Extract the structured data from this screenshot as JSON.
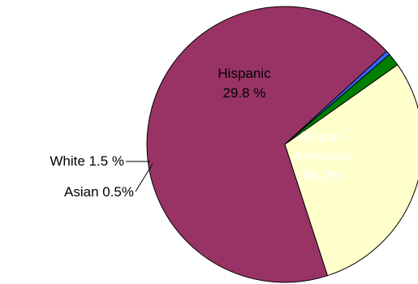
{
  "chart_data": {
    "type": "pie",
    "slices": [
      {
        "name": "African-American",
        "value": 68.2,
        "label_lines": [
          "African-",
          "American",
          "68.2%"
        ],
        "color": "#993366"
      },
      {
        "name": "Asian",
        "value": 0.5,
        "label_lines": [
          "Asian  0.5%"
        ],
        "color": "#3366FF"
      },
      {
        "name": "White",
        "value": 1.5,
        "label_lines": [
          "White  1.5 %"
        ],
        "color": "#008000"
      },
      {
        "name": "Hispanic",
        "value": 29.8,
        "label_lines": [
          "Hispanic",
          "29.8 %"
        ],
        "color": "#FFFFCC"
      }
    ],
    "legend": "none"
  }
}
